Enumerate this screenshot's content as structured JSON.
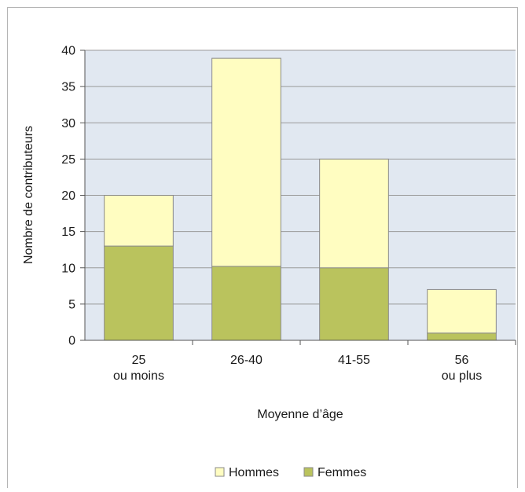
{
  "chart_data": {
    "type": "bar",
    "stacked": true,
    "categories": [
      [
        "25",
        "ou moins"
      ],
      [
        "26-40"
      ],
      [
        "41-55"
      ],
      [
        "56",
        "ou plus"
      ]
    ],
    "series": [
      {
        "name": "Femmes",
        "values": [
          13,
          10.2,
          10,
          1
        ],
        "color": "#bac35d"
      },
      {
        "name": "Hommes",
        "values": [
          7,
          28.7,
          15,
          6
        ],
        "color": "#fffdc1"
      }
    ],
    "title": "",
    "xlabel": "Moyenne d’âge",
    "ylabel": "Nombre de contributeurs",
    "ylim": [
      0,
      40
    ],
    "yticks": [
      0,
      5,
      10,
      15,
      20,
      25,
      30,
      35,
      40
    ],
    "grid": true,
    "legend_position": "bottom",
    "legend_order": [
      "Hommes",
      "Femmes"
    ],
    "plot_background": "#e1e8f1",
    "gridline_color": "#9a9a9a",
    "bar_border_color": "#8a8a8a"
  }
}
